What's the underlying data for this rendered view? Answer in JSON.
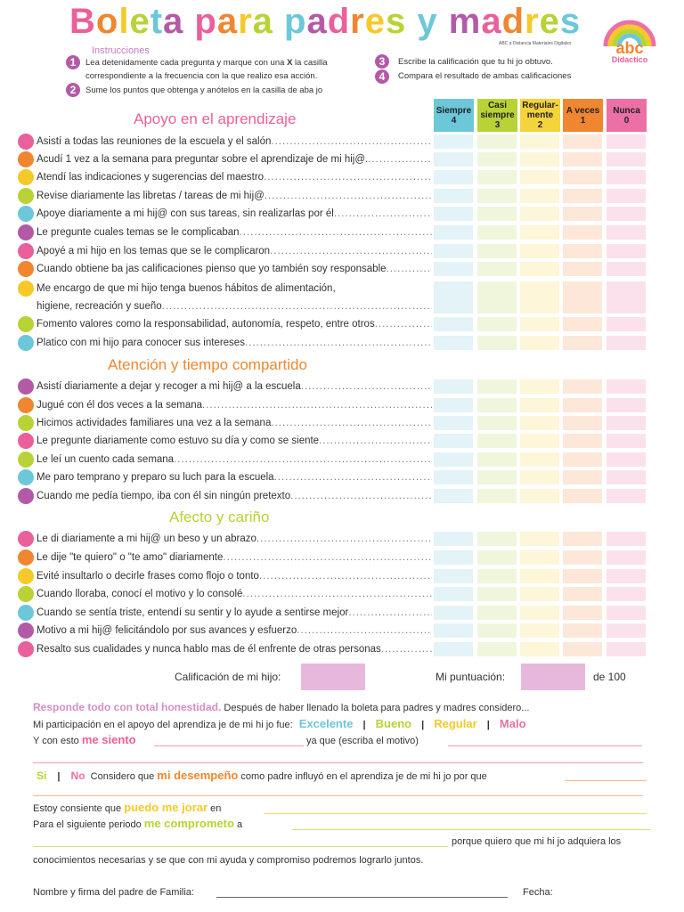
{
  "title": "Boleta para padres y madres",
  "title_colors": [
    "#e9609b",
    "#f0862f",
    "#f5c928",
    "#b9d236",
    "#6cc7d9",
    "#b35aa7"
  ],
  "credit": "ABC a Distancia Materiales Digitales",
  "logo": {
    "text": "abc",
    "sub": "Didactico"
  },
  "instructions": {
    "heading": "Instrucciones",
    "steps": [
      {
        "n": "1",
        "text": "Lea detenidamente cada pregunta y marque con una",
        "mark": "X",
        "text2": "la casilla",
        "text3": "correspondiente a la frecuencia con la que realizo esa acción."
      },
      {
        "n": "2",
        "text": "Sume los puntos que obtenga y anótelos en la casilla de aba jo"
      },
      {
        "n": "3",
        "text": "Escribe la calificación que tu hi jo obtuvo."
      },
      {
        "n": "4",
        "text": "Compara el resultado de ambas calificaciones"
      }
    ]
  },
  "columns": [
    {
      "label": "Siempre",
      "points": "4",
      "color": "#6cc7d9",
      "light": "#e3f3f8"
    },
    {
      "label": "Casi siempre",
      "points": "3",
      "color": "#b9d236",
      "light": "#f0f6dc"
    },
    {
      "label": "Regular-mente",
      "points": "2",
      "color": "#f5d33c",
      "light": "#fdf6d8"
    },
    {
      "label": "A veces",
      "points": "1",
      "color": "#f0862f",
      "light": "#fde7d8"
    },
    {
      "label": "Nunca",
      "points": "0",
      "color": "#ec6fa6",
      "light": "#fbe1ec"
    }
  ],
  "sections": [
    {
      "title": "Apoyo en el aprendizaje",
      "color": "#ec5f99",
      "items": [
        {
          "text": "Asistí a todas las reuniones de la escuela y el salón",
          "dot": "#e9609b"
        },
        {
          "text": "Acudí 1 vez a la semana para preguntar sobre el aprendizaje de mi hij@.",
          "dot": "#f0862f"
        },
        {
          "text": "Atendí las indicaciones y sugerencias del maestro",
          "dot": "#f5c928"
        },
        {
          "text": "Revise diariamente las libretas / tareas de mi hij@",
          "dot": "#b9d236"
        },
        {
          "text": "Apoye diariamente a mi hij@ con sus tareas, sin realizarlas por él",
          "dot": "#6cc7d9"
        },
        {
          "text": "Le pregunte cuales temas se le complicaban",
          "dot": "#b35aa7"
        },
        {
          "text": "Apoyé a mi hijo en los temas que se le complicaron",
          "dot": "#e9609b"
        },
        {
          "text": "Cuando obtiene ba jas calificaciones pienso que yo también soy responsable",
          "dot": "#f0862f"
        },
        {
          "text": "Me encargo de que mi hijo tenga buenos hábitos de alimentación,",
          "text2": "higiene, recreación y sueño",
          "dot": "#f5c928"
        },
        {
          "text": "Fomento valores como la responsabilidad, autonomía, respeto, entre otros",
          "dot": "#b9d236"
        },
        {
          "text": "Platico con mi hijo para conocer sus intereses",
          "dot": "#6cc7d9"
        }
      ]
    },
    {
      "title": "Atención y tiempo compartido",
      "color": "#f0862f",
      "items": [
        {
          "text": "Asistí diariamente a dejar y recoger a mi hij@ a la escuela",
          "dot": "#b35aa7"
        },
        {
          "text": "Jugué con él dos veces a la semana",
          "dot": "#f0862f"
        },
        {
          "text": "Hicimos actividades familiares una vez a la semana",
          "dot": "#b9d236"
        },
        {
          "text": "Le pregunte diariamente como estuvo su día y como se siente",
          "dot": "#e9609b"
        },
        {
          "text": "Le leí un cuento cada semana",
          "dot": "#b9d236"
        },
        {
          "text": "Me paro temprano y preparo su luch para la escuela",
          "dot": "#6cc7d9"
        },
        {
          "text": "Cuando me pedía tiempo, iba con él sin ningún pretexto",
          "dot": "#b35aa7"
        }
      ]
    },
    {
      "title": "Afecto y cariño",
      "color": "#b9d236",
      "items": [
        {
          "text": "Le di diariamente a mi hij@ un beso y un abrazo",
          "dot": "#e9609b"
        },
        {
          "text": "Le dije \"te quiero\" o \"te amo\" diariamente",
          "dot": "#f0862f"
        },
        {
          "text": "Evité insultarlo o decirle frases como flojo o tonto",
          "dot": "#f5c928"
        },
        {
          "text": "Cuando lloraba, conocí el motivo y lo consolé",
          "dot": "#b9d236"
        },
        {
          "text": "Cuando se sentía triste, entendí su sentir y lo ayude a sentirse mejor",
          "dot": "#6cc7d9"
        },
        {
          "text": "Motivo a mi hij@ felicitándolo por sus avances y esfuerzo",
          "dot": "#b35aa7"
        },
        {
          "text": "Resalto sus cualidades y nunca hablo mas de él enfrente de otras personas",
          "dot": "#e9609b"
        }
      ]
    }
  ],
  "score": {
    "child_label": "Calificación de mi hijo:",
    "mine_label": "Mi puntuación:",
    "of": "de 100",
    "box_color": "#e8b8dc"
  },
  "reflection": {
    "lead": "Responde todo con total honestidad.",
    "lead_rest": "Después de haber llenado la boleta para padres y madres considero...",
    "participation": "Mi participación en el apoyo del aprendiza je de mi hi jo fue:",
    "options": [
      {
        "label": "Excelente",
        "color": "#6cc7d9"
      },
      {
        "label": "Bueno",
        "color": "#b9d236"
      },
      {
        "label": "Regular",
        "color": "#f5c928"
      },
      {
        "label": "Malo",
        "color": "#ec6fa6"
      }
    ],
    "feel_pre": "Y con esto",
    "feel_hl": "me siento",
    "feel_post": "ya que (escriba el motivo)",
    "si": "Si",
    "no": "No",
    "perf_pre": "Considero que",
    "perf_hl": "mi desempeño",
    "perf_post": "como padre influyó en el aprendiza je de mi hi jo por que",
    "improve_pre": "Estoy consiente que",
    "improve_hl": "puedo me jorar",
    "improve_post": "en",
    "commit_pre": "Para el siguiente periodo",
    "commit_hl": "me comprometo",
    "commit_post": "a",
    "because": "porque quiero que mi hi jo adquiera los",
    "closing": "conocimientos necesarias y se que con mi ayuda y compromiso podremos lograrlo  juntos.",
    "signature": "Nombre y firma del padre de Familia:",
    "date": "Fecha:"
  }
}
